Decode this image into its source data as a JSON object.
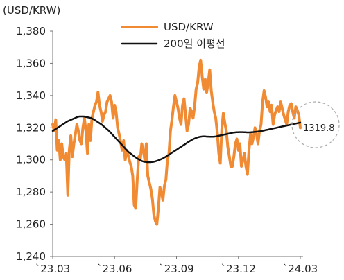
{
  "chart_data": {
    "type": "line",
    "unit_label": "(USD/KRW)",
    "ylim": [
      1240,
      1380
    ],
    "y_ticks": [
      1380,
      1360,
      1340,
      1320,
      1300,
      1280,
      1260,
      1240
    ],
    "y_tick_labels": [
      "1,380",
      "1,360",
      "1,340",
      "1,320",
      "1,300",
      "1,280",
      "1,260",
      "1,240"
    ],
    "x_tick_labels": [
      "`23.03",
      "`23.06",
      "`23.09",
      "`23.12",
      "`24.03"
    ],
    "grid": false,
    "legend_position": "top-center",
    "colors": {
      "usdkrw": "#f08a33",
      "ma200": "#111111",
      "annotation_circle": "#aaaaaa",
      "axis": "#777777"
    },
    "annotation": {
      "text": "1319.8",
      "value": 1319.8,
      "style": "dashed circle"
    },
    "series": [
      {
        "name": "USD/KRW",
        "values": [
          1322,
          1318,
          1325,
          1306,
          1312,
          1300,
          1310,
          1302,
          1300,
          1304,
          1278,
          1306,
          1315,
          1302,
          1310,
          1316,
          1322,
          1318,
          1312,
          1310,
          1320,
          1326,
          1318,
          1304,
          1322,
          1312,
          1326,
          1330,
          1334,
          1336,
          1342,
          1334,
          1330,
          1324,
          1328,
          1330,
          1336,
          1338,
          1340,
          1336,
          1326,
          1334,
          1330,
          1320,
          1316,
          1311,
          1306,
          1312,
          1300,
          1306,
          1303,
          1299,
          1296,
          1290,
          1272,
          1270,
          1288,
          1302,
          1300,
          1310,
          1306,
          1300,
          1310,
          1290,
          1286,
          1282,
          1276,
          1266,
          1262,
          1260,
          1270,
          1283,
          1280,
          1275,
          1284,
          1288,
          1300,
          1304,
          1318,
          1325,
          1333,
          1340,
          1336,
          1332,
          1326,
          1322,
          1334,
          1338,
          1328,
          1318,
          1322,
          1332,
          1330,
          1326,
          1333,
          1344,
          1348,
          1358,
          1362,
          1352,
          1344,
          1350,
          1342,
          1348,
          1356,
          1343,
          1336,
          1330,
          1326,
          1317,
          1304,
          1298,
          1319,
          1329,
          1323,
          1318,
          1308,
          1302,
          1296,
          1296,
          1302,
          1310,
          1313,
          1306,
          1310,
          1296,
          1300,
          1304,
          1296,
          1291,
          1306,
          1316,
          1310,
          1314,
          1320,
          1316,
          1310,
          1318,
          1322,
          1336,
          1343,
          1339,
          1333,
          1336,
          1330,
          1334,
          1322,
          1328,
          1331,
          1333,
          1330,
          1336,
          1332,
          1328,
          1325,
          1322,
          1330,
          1334,
          1335,
          1330,
          1326,
          1333,
          1331,
          1328,
          1320
        ]
      },
      {
        "name": "200일 이평선",
        "values": [
          1318,
          1318.6,
          1319.2,
          1319.8,
          1320.4,
          1321,
          1321.6,
          1322.2,
          1322.8,
          1323.4,
          1324,
          1324.4,
          1324.8,
          1325.2,
          1325.6,
          1326,
          1326.4,
          1326.8,
          1327,
          1327,
          1327,
          1327,
          1326.8,
          1326.6,
          1326.4,
          1326.2,
          1326,
          1325.5,
          1325,
          1324.4,
          1323.8,
          1323.2,
          1322.6,
          1322,
          1321.2,
          1320.4,
          1319.6,
          1318.8,
          1318,
          1317,
          1316,
          1315,
          1314,
          1313,
          1312,
          1311,
          1310,
          1309,
          1308,
          1307,
          1306,
          1305,
          1304.3,
          1303.6,
          1302.9,
          1302.2,
          1301.5,
          1300.9,
          1300.3,
          1299.8,
          1299.3,
          1299,
          1298.8,
          1298.7,
          1298.6,
          1298.6,
          1298.6,
          1298.7,
          1298.8,
          1299,
          1299.3,
          1299.6,
          1300,
          1300.4,
          1300.8,
          1301.3,
          1301.8,
          1302.4,
          1303,
          1303.6,
          1304.2,
          1304.8,
          1305.4,
          1306,
          1306.6,
          1307.2,
          1307.8,
          1308.4,
          1309,
          1309.6,
          1310.2,
          1310.8,
          1311.4,
          1312,
          1312.5,
          1313,
          1313.4,
          1313.8,
          1314.1,
          1314.3,
          1314.5,
          1314.6,
          1314.6,
          1314.6,
          1314.5,
          1314.5,
          1314.4,
          1314.4,
          1314.4,
          1314.5,
          1314.6,
          1314.8,
          1315,
          1315.2,
          1315.4,
          1315.6,
          1315.8,
          1316,
          1316.2,
          1316.4,
          1316.6,
          1316.8,
          1317,
          1317.1,
          1317.2,
          1317.2,
          1317.3,
          1317.3,
          1317.3,
          1317.2,
          1317.2,
          1317.1,
          1317.1,
          1317.1,
          1317.2,
          1317.3,
          1317.4,
          1317.5,
          1317.6,
          1317.7,
          1317.8,
          1318,
          1318.2,
          1318.4,
          1318.6,
          1318.8,
          1319,
          1319.2,
          1319.4,
          1319.6,
          1319.8,
          1320,
          1320.2,
          1320.4,
          1320.6,
          1320.8,
          1321,
          1321.2,
          1321.4,
          1321.6,
          1321.8,
          1322,
          1322.2,
          1322.4,
          1322.6,
          1322.8,
          1323,
          1323.2
        ]
      }
    ]
  }
}
